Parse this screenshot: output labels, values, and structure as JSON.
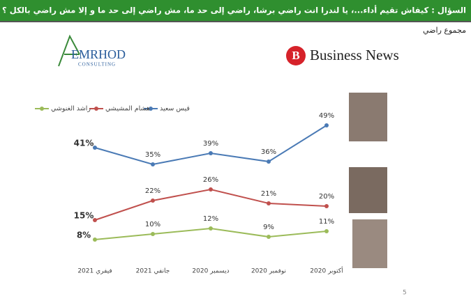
{
  "chart_data": {
    "type": "line",
    "title": "السؤال : كيفاش تقيم أداء...، يا لندرا انت راضي برشا، راضي إلى حد ما، مش راضي إلى حد ما و إلا مش راضي بالكل ؟",
    "subtitle": "مجموع راضي",
    "categories": [
      "فيفري 2021",
      "جانفي 2021",
      "ديسمبر 2020",
      "نوفمبر 2020",
      "أكتوبر 2020"
    ],
    "series": [
      {
        "name": "قيس سعيد",
        "color": "#4a7ab5",
        "values": [
          41,
          35,
          39,
          36,
          49
        ],
        "value_labels": [
          "41%",
          "35%",
          "39%",
          "36%",
          "49%"
        ]
      },
      {
        "name": "هشام المشيشي",
        "color": "#c0504d",
        "values": [
          15,
          22,
          26,
          21,
          20
        ],
        "value_labels": [
          "15%",
          "22%",
          "26%",
          "21%",
          "20%"
        ]
      },
      {
        "name": "راشد الغنوشي",
        "color": "#9bbb59",
        "values": [
          8,
          10,
          12,
          9,
          11
        ],
        "value_labels": [
          "8%",
          "10%",
          "12%",
          "9%",
          "11%"
        ]
      }
    ],
    "legend": "top"
  },
  "logos": {
    "left": "EMRHOD",
    "left_sub": "CONSULTING",
    "right_mark": "B",
    "right": "Business News"
  },
  "page_number": 5
}
